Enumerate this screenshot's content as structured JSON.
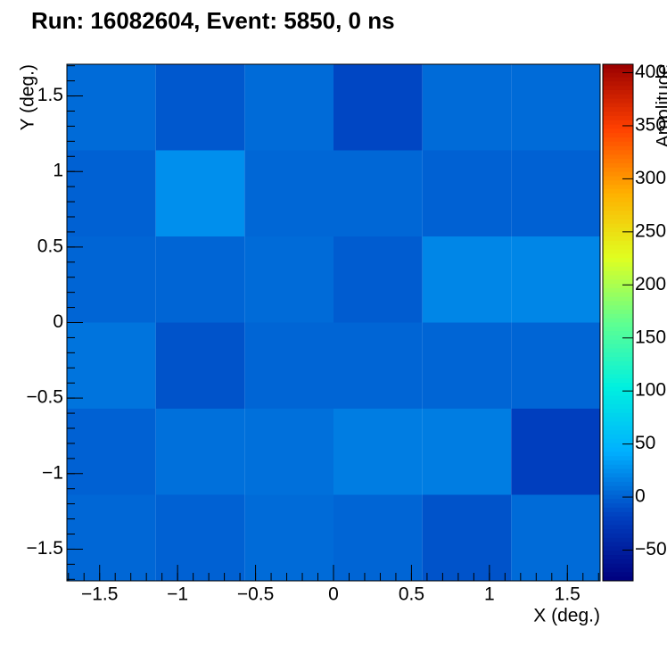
{
  "chart_data": {
    "type": "heatmap",
    "title": "Run: 16082604, Event: 5850, 0 ns",
    "x_label": "X (deg.)",
    "y_label": "Y (deg.)",
    "z_label": "Amplitude",
    "x_bins": [
      -1.71,
      -1.14,
      -0.57,
      0,
      0.57,
      1.14,
      1.71
    ],
    "y_bins": [
      -1.71,
      -1.14,
      -0.57,
      0,
      0.57,
      1.14,
      1.71
    ],
    "z": [
      [
        3,
        0,
        5,
        2,
        -8,
        5
      ],
      [
        0,
        8,
        8,
        15,
        15,
        -20
      ],
      [
        10,
        -8,
        2,
        2,
        2,
        2
      ],
      [
        2,
        2,
        5,
        -3,
        20,
        20
      ],
      [
        0,
        25,
        3,
        3,
        0,
        0
      ],
      [
        5,
        -5,
        5,
        -15,
        5,
        5
      ]
    ],
    "xlim": [
      -1.71,
      1.71
    ],
    "ylim": [
      -1.71,
      1.71
    ],
    "zlim": [
      -79,
      408
    ],
    "xticks": [
      {
        "value": -1.5,
        "label": "−1.5"
      },
      {
        "value": -1,
        "label": "−1"
      },
      {
        "value": -0.5,
        "label": "−0.5"
      },
      0,
      0.5,
      1,
      1.5
    ],
    "yticks": [
      {
        "value": -1.5,
        "label": "−1.5"
      },
      {
        "value": -1,
        "label": "−1"
      },
      {
        "value": -0.5,
        "label": "−0.5"
      },
      0,
      0.5,
      1,
      1.5
    ],
    "zticks": [
      {
        "value": -50,
        "label": "−50"
      },
      0,
      50,
      100,
      150,
      200,
      250,
      300,
      350,
      400
    ],
    "colormap": [
      "#00007f",
      "#0040c0",
      "#00b0ff",
      "#00f0e0",
      "#60ff90",
      "#e0ff20",
      "#ffb000",
      "#ff4000",
      "#9a0000"
    ]
  }
}
